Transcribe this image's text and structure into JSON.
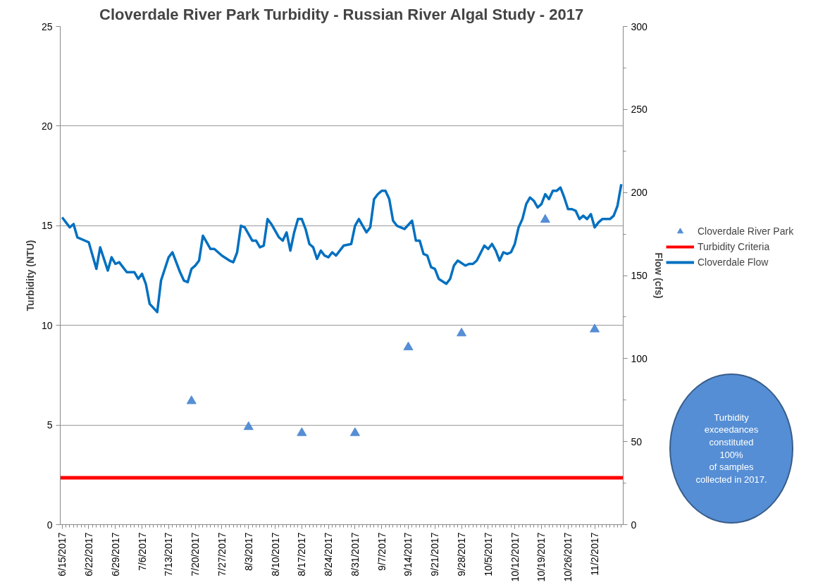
{
  "chart_data": {
    "type": "line",
    "title": "Cloverdale River Park Turbidity - Russian River Algal Study - 2017",
    "ylabel": "Turbidity (NTU)",
    "y2label": "Flow (cfs)",
    "xlim": [
      "2017-06-14T12:00",
      "2017-11-09T12:00"
    ],
    "xticks": [
      {
        "value": "2017-06-15",
        "label": "6/15/2017"
      },
      {
        "value": "2017-06-22",
        "label": "6/22/2017"
      },
      {
        "value": "2017-06-29",
        "label": "6/29/2017"
      },
      {
        "value": "2017-07-06",
        "label": "7/6/2017"
      },
      {
        "value": "2017-07-13",
        "label": "7/13/2017"
      },
      {
        "value": "2017-07-20",
        "label": "7/20/2017"
      },
      {
        "value": "2017-07-27",
        "label": "7/27/2017"
      },
      {
        "value": "2017-08-03",
        "label": "8/3/2017"
      },
      {
        "value": "2017-08-10",
        "label": "8/10/2017"
      },
      {
        "value": "2017-08-17",
        "label": "8/17/2017"
      },
      {
        "value": "2017-08-24",
        "label": "8/24/2017"
      },
      {
        "value": "2017-08-31",
        "label": "8/31/2017"
      },
      {
        "value": "2017-09-07",
        "label": "9/7/2017"
      },
      {
        "value": "2017-09-14",
        "label": "9/14/2017"
      },
      {
        "value": "2017-09-21",
        "label": "9/21/2017"
      },
      {
        "value": "2017-09-28",
        "label": "9/28/2017"
      },
      {
        "value": "2017-10-05",
        "label": "10/5/2017"
      },
      {
        "value": "2017-10-12",
        "label": "10/12/2017"
      },
      {
        "value": "2017-10-19",
        "label": "10/19/2017"
      },
      {
        "value": "2017-10-26",
        "label": "10/26/2017"
      },
      {
        "value": "2017-11-02",
        "label": "11/2/2017"
      }
    ],
    "ylim": [
      0,
      25
    ],
    "yticks": [
      0,
      5,
      10,
      15,
      20,
      25
    ],
    "y2lim": [
      0,
      300
    ],
    "y2ticks": [
      0,
      50,
      100,
      150,
      200,
      250,
      300
    ],
    "grid": "y",
    "legend": "right",
    "series": [
      {
        "name": "Cloverdale River Park",
        "type": "scatter",
        "marker": "triangle",
        "color": "#558ed5",
        "x": [
          "2017-07-19",
          "2017-08-03",
          "2017-08-17",
          "2017-08-31",
          "2017-09-14",
          "2017-09-28",
          "2017-10-20",
          "2017-11-02"
        ],
        "values": [
          6.2,
          4.9,
          4.6,
          4.6,
          8.9,
          9.6,
          15.3,
          9.8
        ]
      },
      {
        "name": "Turbidity Criteria",
        "type": "line",
        "color": "#ff0000",
        "x": [
          "2017-06-14T12:00",
          "2017-11-09T12:00"
        ],
        "values": [
          2.35,
          2.35
        ]
      },
      {
        "name": "Cloverdale Flow",
        "color": "#0070c0",
        "axis": "y2",
        "x": [
          "2017-06-15",
          "2017-06-17",
          "2017-06-18",
          "2017-06-19",
          "2017-06-21",
          "2017-06-22",
          "2017-06-24",
          "2017-06-25",
          "2017-06-27",
          "2017-06-28",
          "2017-06-29",
          "2017-06-30",
          "2017-07-02",
          "2017-07-04",
          "2017-07-05",
          "2017-07-06",
          "2017-07-07",
          "2017-07-08",
          "2017-07-10",
          "2017-07-11",
          "2017-07-13",
          "2017-07-14",
          "2017-07-16",
          "2017-07-17",
          "2017-07-18",
          "2017-07-19",
          "2017-07-20",
          "2017-07-21",
          "2017-07-22",
          "2017-07-24",
          "2017-07-25",
          "2017-07-27",
          "2017-07-29",
          "2017-07-30",
          "2017-07-31",
          "2017-08-01",
          "2017-08-02",
          "2017-08-04",
          "2017-08-05",
          "2017-08-06",
          "2017-08-07",
          "2017-08-08",
          "2017-08-09",
          "2017-08-11",
          "2017-08-12",
          "2017-08-13",
          "2017-08-14",
          "2017-08-15",
          "2017-08-16",
          "2017-08-17",
          "2017-08-18",
          "2017-08-19",
          "2017-08-20",
          "2017-08-21",
          "2017-08-22",
          "2017-08-23",
          "2017-08-24",
          "2017-08-25",
          "2017-08-26",
          "2017-08-27",
          "2017-08-28",
          "2017-08-30",
          "2017-08-31",
          "2017-09-01",
          "2017-09-03",
          "2017-09-04",
          "2017-09-05",
          "2017-09-06",
          "2017-09-07",
          "2017-09-08",
          "2017-09-09",
          "2017-09-10",
          "2017-09-11",
          "2017-09-12",
          "2017-09-13",
          "2017-09-15",
          "2017-09-16",
          "2017-09-17",
          "2017-09-18",
          "2017-09-19",
          "2017-09-20",
          "2017-09-21",
          "2017-09-22",
          "2017-09-24",
          "2017-09-25",
          "2017-09-26",
          "2017-09-27",
          "2017-09-29",
          "2017-09-30",
          "2017-10-01",
          "2017-10-02",
          "2017-10-04",
          "2017-10-05",
          "2017-10-06",
          "2017-10-07",
          "2017-10-08",
          "2017-10-09",
          "2017-10-10",
          "2017-10-11",
          "2017-10-12",
          "2017-10-13",
          "2017-10-14",
          "2017-10-15",
          "2017-10-16",
          "2017-10-17",
          "2017-10-18",
          "2017-10-19",
          "2017-10-20",
          "2017-10-21",
          "2017-10-22",
          "2017-10-23",
          "2017-10-24",
          "2017-10-25",
          "2017-10-26",
          "2017-10-27",
          "2017-10-28",
          "2017-10-29",
          "2017-10-30",
          "2017-10-31",
          "2017-11-01",
          "2017-11-02",
          "2017-11-03",
          "2017-11-04",
          "2017-11-06",
          "2017-11-07",
          "2017-11-08",
          "2017-11-09"
        ],
        "values": [
          185,
          179,
          181,
          173,
          171,
          170,
          154,
          167,
          153,
          161,
          157,
          158,
          152,
          152,
          148,
          151,
          145,
          133,
          128,
          147,
          161,
          164,
          152,
          147,
          146,
          154,
          156,
          159,
          174,
          166,
          166,
          162,
          159,
          158,
          164,
          180,
          179,
          171,
          171,
          167,
          168,
          184,
          181,
          173,
          171,
          176,
          165,
          176,
          184,
          184,
          178,
          169,
          167,
          160,
          165,
          162,
          161,
          164,
          162,
          165,
          168,
          169,
          180,
          184,
          176,
          179,
          196,
          199,
          201,
          201,
          196,
          183,
          180,
          179,
          178,
          183,
          171,
          171,
          163,
          162,
          155,
          154,
          148,
          145,
          148,
          156,
          159,
          156,
          157,
          157,
          159,
          168,
          166,
          169,
          165,
          159,
          164,
          163,
          164,
          169,
          179,
          184,
          193,
          197,
          195,
          191,
          193,
          199,
          196,
          201,
          201,
          203,
          197,
          190,
          190,
          189,
          184,
          186,
          184,
          187,
          179,
          182,
          184,
          184,
          186,
          192,
          205
        ]
      }
    ],
    "annotations": [
      "Turbidity\nexceedances\nconstituted\n100%\nof samples\ncollected in 2017."
    ]
  }
}
